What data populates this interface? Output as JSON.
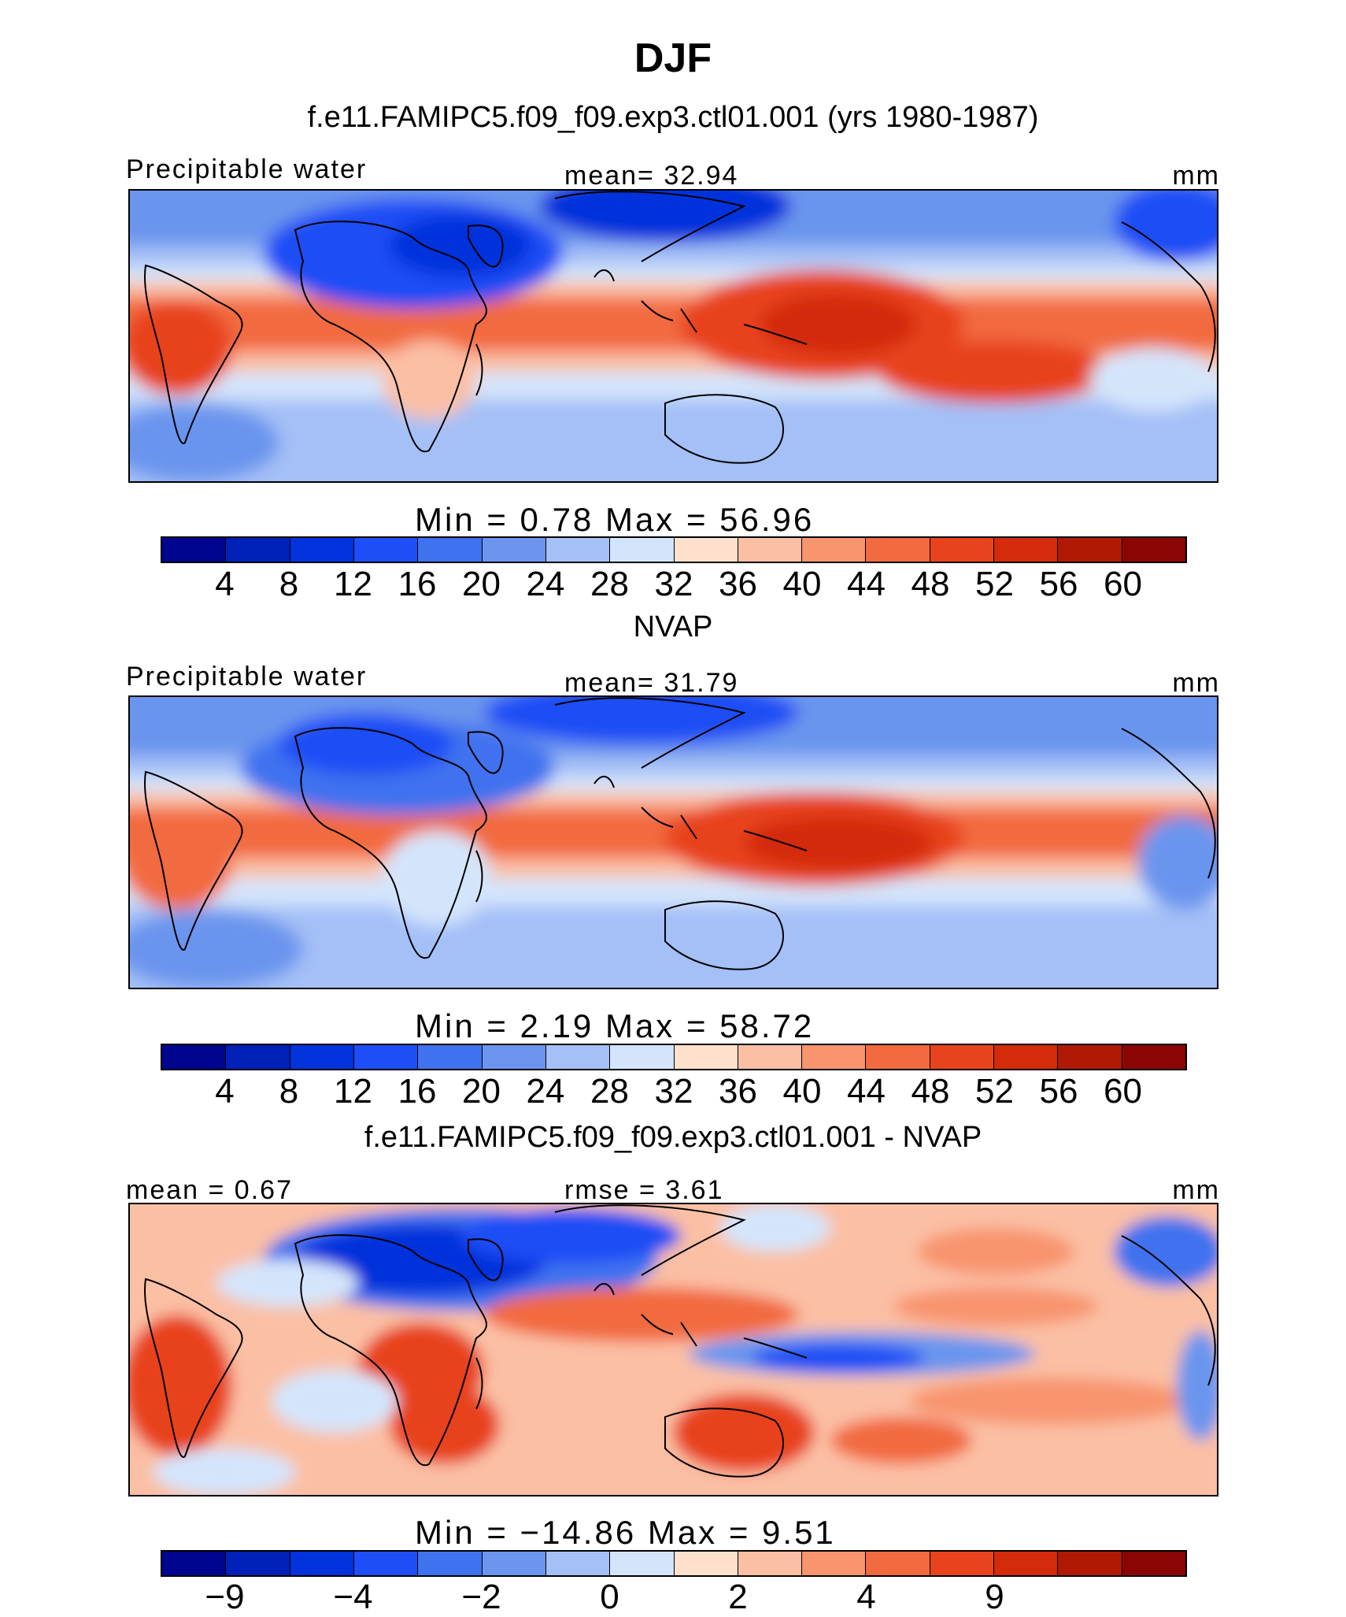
{
  "figure": {
    "title": "DJF"
  },
  "colors": {
    "absolute_palette": [
      "#00058f",
      "#0021b8",
      "#0033dc",
      "#1e4ef5",
      "#3f72ef",
      "#6b95ee",
      "#a4c0f7",
      "#d4e5fb",
      "#fde1cc",
      "#fbbfa4",
      "#f8946e",
      "#f26a3f",
      "#e8431c",
      "#d32b0b",
      "#b01a05",
      "#8a0504"
    ],
    "difference_palette": [
      "#00058f",
      "#0021b8",
      "#0033dc",
      "#1e4ef5",
      "#3f72ef",
      "#6b95ee",
      "#a4c0f7",
      "#d4e5fb",
      "#fde1cc",
      "#fbbfa4",
      "#f8946e",
      "#f26a3f",
      "#e8431c",
      "#d32b0b",
      "#b01a05",
      "#8a0504"
    ],
    "coastline": "#000000"
  },
  "panels": [
    {
      "title": "f.e11.FAMIPC5.f09_f09.exp3.ctl01.001 (yrs 1980-1987)",
      "left_label": "Precipitable water",
      "center_label": "mean=   32.94",
      "right_label": "mm",
      "stats": "Min  =    0.78  Max  =    56.96",
      "ticks": [
        "4",
        "8",
        "12",
        "16",
        "20",
        "24",
        "28",
        "32",
        "36",
        "40",
        "44",
        "48",
        "52",
        "56",
        "60"
      ],
      "kind": "absolute"
    },
    {
      "title": "NVAP",
      "left_label": "Precipitable water",
      "center_label": "mean=   31.79",
      "right_label": "mm",
      "stats": "Min  =    2.19  Max  =    58.72",
      "ticks": [
        "4",
        "8",
        "12",
        "16",
        "20",
        "24",
        "28",
        "32",
        "36",
        "40",
        "44",
        "48",
        "52",
        "56",
        "60"
      ],
      "kind": "absolute"
    },
    {
      "title": "f.e11.FAMIPC5.f09_f09.exp3.ctl01.001 - NVAP",
      "left_label": "mean =    0.67",
      "center_label": "rmse =    3.61",
      "right_label": "mm",
      "stats": "Min  = −14.86  Max  =     9.51",
      "ticks": [
        "−9",
        "−4",
        "−2",
        "0",
        "2",
        "4",
        "9"
      ],
      "kind": "difference"
    }
  ]
}
